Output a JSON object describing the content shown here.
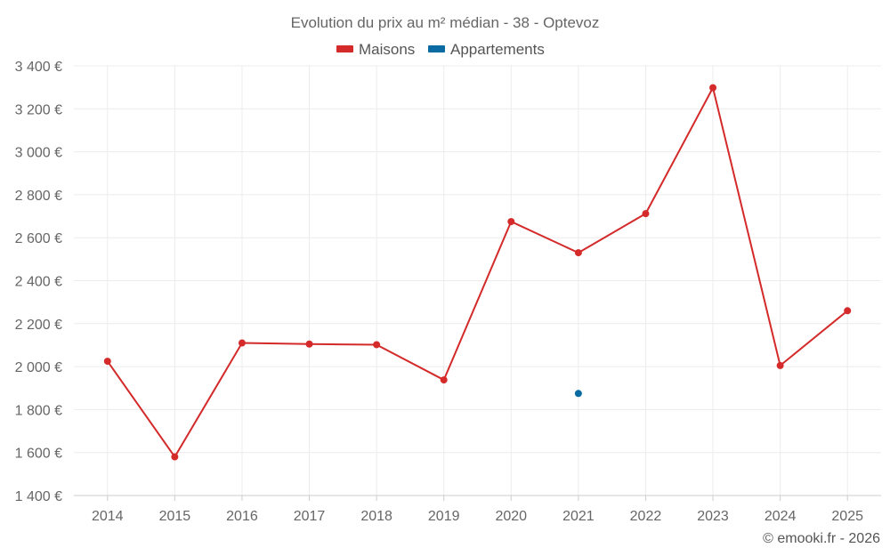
{
  "chart_data": {
    "type": "line",
    "title": "Evolution du prix au m² médian - 38 - Optevoz",
    "categories": [
      "2014",
      "2015",
      "2016",
      "2017",
      "2018",
      "2019",
      "2020",
      "2021",
      "2022",
      "2023",
      "2024",
      "2025"
    ],
    "series": [
      {
        "name": "Maisons",
        "color": "#d42a2a",
        "values": [
          2025,
          1580,
          2110,
          2105,
          2102,
          1938,
          2675,
          2530,
          2712,
          3298,
          2005,
          2260
        ]
      },
      {
        "name": "Appartements",
        "color": "#0a6ba3",
        "values": [
          null,
          null,
          null,
          null,
          null,
          null,
          null,
          1875,
          null,
          null,
          null,
          null
        ]
      }
    ],
    "ylim": [
      1400,
      3400
    ],
    "yticks": [
      1400,
      1600,
      1800,
      2000,
      2200,
      2400,
      2600,
      2800,
      3000,
      3200,
      3400
    ],
    "ytick_labels": [
      "1 400 €",
      "1 600 €",
      "1 800 €",
      "2 000 €",
      "2 200 €",
      "2 400 €",
      "2 600 €",
      "2 800 €",
      "3 000 €",
      "3 200 €",
      "3 400 €"
    ],
    "legend_position": "top-center",
    "credit": "© emooki.fr - 2026"
  }
}
